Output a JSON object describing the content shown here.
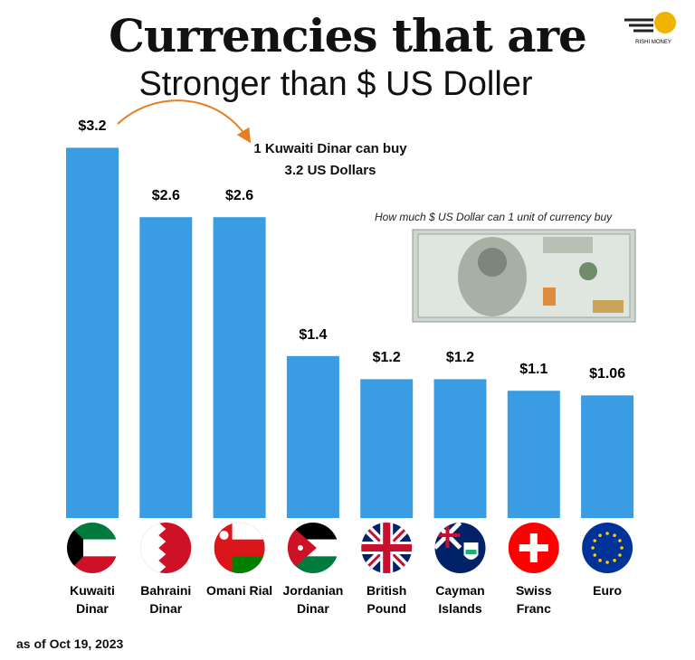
{
  "chart_data": {
    "type": "bar",
    "title": "Currencies that are",
    "subtitle": "Stronger than $ US Doller",
    "annotation": "1 Kuwaiti Dinar can buy 3.2 US Dollars",
    "note": "How much $ US Dollar can 1 unit of currency buy",
    "footnote": "as of Oct 19, 2023",
    "logo": "RISHI MONEY",
    "color": "#3a9de3",
    "categories": [
      "Kuwaiti Dinar",
      "Bahraini Dinar",
      "Omani Rial",
      "Jordanian Dinar",
      "British Pound",
      "Cayman Islands",
      "Swiss Franc",
      "Euro"
    ],
    "values": [
      3.2,
      2.6,
      2.6,
      1.4,
      1.2,
      1.2,
      1.1,
      1.06
    ],
    "value_labels": [
      "$3.2",
      "$2.6",
      "$2.6",
      "$1.4",
      "$1.2",
      "$1.2",
      "$1.1",
      "$1.06"
    ]
  }
}
